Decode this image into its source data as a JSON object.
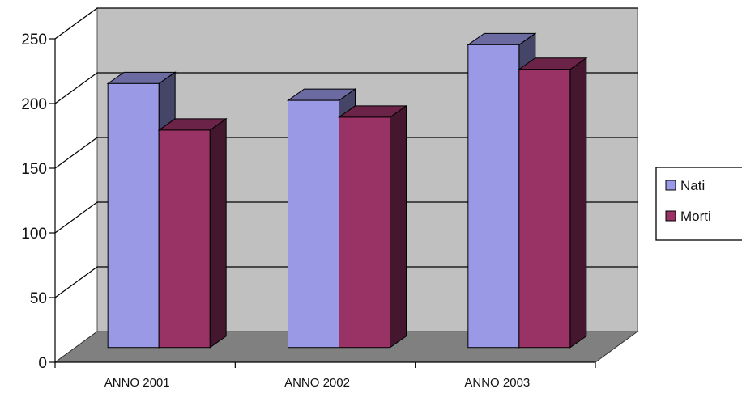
{
  "chart_data": {
    "type": "bar",
    "categories": [
      "ANNO 2001",
      "ANNO 2002",
      "ANNO 2003"
    ],
    "series": [
      {
        "name": "Nati",
        "values": [
          204,
          191,
          234
        ],
        "color": "#9999e6"
      },
      {
        "name": "Morti",
        "values": [
          168,
          178,
          215
        ],
        "color": "#993366"
      }
    ],
    "ylim": [
      0,
      250
    ],
    "yticks": [
      0,
      50,
      100,
      150,
      200,
      250
    ],
    "grid": true,
    "legend": "right",
    "title": "",
    "xlabel": "",
    "ylabel": "",
    "colors": {
      "back_wall": "#c0c0c0",
      "floor": "#808080",
      "side_wall": "#ffffff",
      "grid": "#000000"
    }
  }
}
